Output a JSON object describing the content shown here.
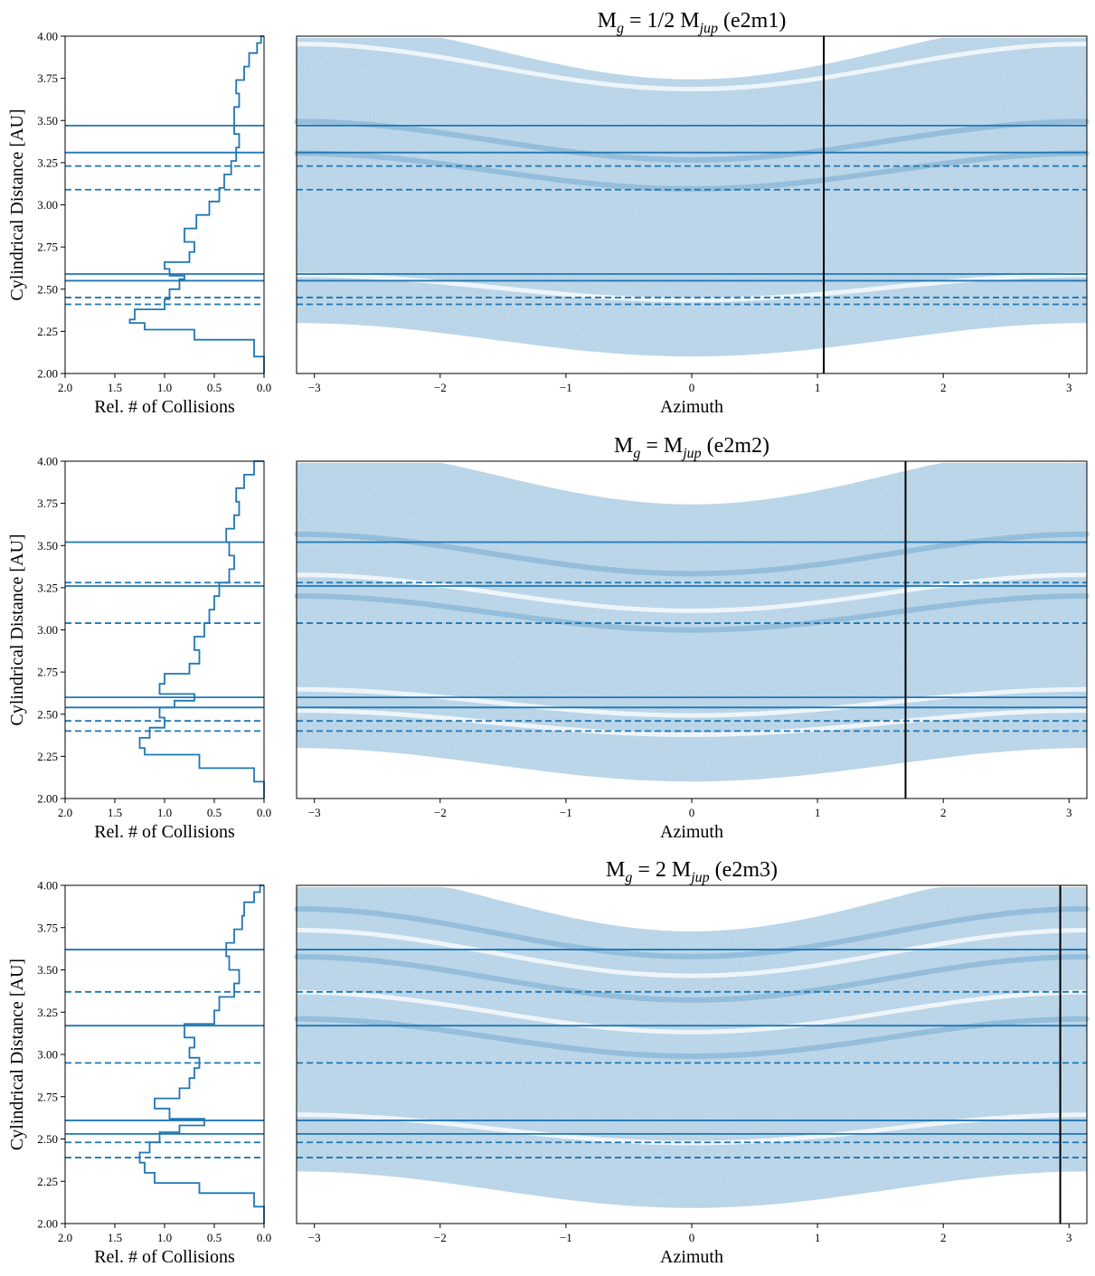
{
  "colors": {
    "series": "#1f77b4",
    "planet_line": "#000000",
    "frame": "#000000"
  },
  "chart_data": [
    {
      "id": "e2m1",
      "title": {
        "prefix": "M",
        "sub1": "g",
        "mid": " = 1/2 M",
        "sub2": "jup",
        "suffix": " (e2m1)"
      },
      "hist": {
        "type": "step",
        "xlabel": "Rel. # of Collisions",
        "ylabel": "Cylindrical Distance [AU]",
        "xlim": [
          2.0,
          0.0
        ],
        "ylim": [
          2.0,
          4.0
        ],
        "xticks": [
          "2.0",
          "1.5",
          "1.0",
          "0.5",
          "0.0"
        ],
        "yticks": [
          "2.00",
          "2.25",
          "2.50",
          "2.75",
          "3.00",
          "3.25",
          "3.50",
          "3.75",
          "4.00"
        ],
        "r": [
          2.0,
          2.1,
          2.2,
          2.26,
          2.3,
          2.32,
          2.38,
          2.44,
          2.5,
          2.56,
          2.58,
          2.62,
          2.66,
          2.72,
          2.78,
          2.86,
          2.94,
          3.02,
          3.1,
          3.18,
          3.26,
          3.34,
          3.42,
          3.5,
          3.58,
          3.66,
          3.74,
          3.82,
          3.9,
          3.96,
          4.0
        ],
        "counts": [
          0.0,
          0.1,
          0.7,
          1.2,
          1.35,
          1.3,
          1.0,
          0.95,
          0.85,
          0.8,
          0.95,
          1.0,
          0.75,
          0.7,
          0.8,
          0.68,
          0.55,
          0.45,
          0.4,
          0.33,
          0.28,
          0.25,
          0.3,
          0.3,
          0.25,
          0.28,
          0.2,
          0.15,
          0.07,
          0.03,
          0.0
        ]
      },
      "lines_solid": [
        2.55,
        2.59,
        3.31,
        3.47
      ],
      "lines_dashed": [
        2.41,
        2.45,
        3.09,
        3.23
      ],
      "scatter": {
        "type": "scatter",
        "xlabel": "Azimuth",
        "xlim": [
          -3.1416,
          3.1416
        ],
        "ylim": [
          2.0,
          4.0
        ],
        "xticks": [
          "−3",
          "−2",
          "−1",
          "0",
          "1",
          "2",
          "3"
        ],
        "planet_azimuth": 1.05,
        "amp": 0.11,
        "gaps": [
          2.51,
          3.82
        ],
        "dense": [
          3.2,
          3.38
        ]
      }
    },
    {
      "id": "e2m2",
      "title": {
        "prefix": "M",
        "sub1": "g",
        "mid": " = M",
        "sub2": "jup",
        "suffix": " (e2m2)"
      },
      "hist": {
        "type": "step",
        "xlabel": "Rel. # of Collisions",
        "ylabel": "Cylindrical Distance [AU]",
        "xlim": [
          2.0,
          0.0
        ],
        "ylim": [
          2.0,
          4.0
        ],
        "xticks": [
          "2.0",
          "1.5",
          "1.0",
          "0.5",
          "0.0"
        ],
        "yticks": [
          "2.00",
          "2.25",
          "2.50",
          "2.75",
          "3.00",
          "3.25",
          "3.50",
          "3.75",
          "4.00"
        ],
        "r": [
          2.0,
          2.1,
          2.18,
          2.26,
          2.3,
          2.36,
          2.42,
          2.48,
          2.54,
          2.58,
          2.62,
          2.68,
          2.74,
          2.8,
          2.88,
          2.96,
          3.04,
          3.12,
          3.2,
          3.28,
          3.36,
          3.44,
          3.52,
          3.6,
          3.68,
          3.76,
          3.84,
          3.92,
          4.0
        ],
        "counts": [
          0.0,
          0.1,
          0.65,
          1.2,
          1.25,
          1.15,
          1.0,
          1.05,
          0.9,
          0.7,
          1.05,
          1.0,
          0.75,
          0.65,
          0.7,
          0.6,
          0.55,
          0.5,
          0.45,
          0.35,
          0.3,
          0.35,
          0.38,
          0.3,
          0.25,
          0.28,
          0.2,
          0.1,
          0.0
        ]
      },
      "lines_solid": [
        2.54,
        2.6,
        3.26,
        3.52
      ],
      "lines_dashed": [
        2.4,
        2.46,
        3.04,
        3.28
      ],
      "scatter": {
        "type": "scatter",
        "xlabel": "Azimuth",
        "xlim": [
          -3.1416,
          3.1416
        ],
        "ylim": [
          2.0,
          4.0
        ],
        "xticks": [
          "−3",
          "−2",
          "−1",
          "0",
          "1",
          "2",
          "3"
        ],
        "planet_azimuth": 1.7,
        "amp": 0.11,
        "gaps": [
          2.45,
          2.57,
          3.22
        ],
        "dense": [
          3.1,
          3.45
        ]
      }
    },
    {
      "id": "e2m3",
      "title": {
        "prefix": "M",
        "sub1": "g",
        "mid": " = 2 M",
        "sub2": "jup",
        "suffix": " (e2m3)"
      },
      "hist": {
        "type": "step",
        "xlabel": "Rel. # of Collisions",
        "ylabel": "Cylindrical Distance [AU]",
        "xlim": [
          2.0,
          0.0
        ],
        "ylim": [
          2.0,
          4.0
        ],
        "xticks": [
          "2.0",
          "1.5",
          "1.0",
          "0.5",
          "0.0"
        ],
        "yticks": [
          "2.00",
          "2.25",
          "2.50",
          "2.75",
          "3.00",
          "3.25",
          "3.50",
          "3.75",
          "4.00"
        ],
        "r": [
          2.0,
          2.1,
          2.18,
          2.24,
          2.3,
          2.36,
          2.42,
          2.48,
          2.54,
          2.58,
          2.62,
          2.68,
          2.74,
          2.8,
          2.86,
          2.92,
          2.98,
          3.04,
          3.1,
          3.18,
          3.26,
          3.34,
          3.42,
          3.5,
          3.58,
          3.66,
          3.74,
          3.82,
          3.9,
          3.96,
          4.0
        ],
        "counts": [
          0.0,
          0.1,
          0.65,
          1.1,
          1.2,
          1.25,
          1.15,
          1.05,
          0.85,
          0.6,
          0.95,
          1.1,
          0.85,
          0.75,
          0.7,
          0.65,
          0.75,
          0.7,
          0.8,
          0.5,
          0.45,
          0.3,
          0.25,
          0.35,
          0.38,
          0.3,
          0.22,
          0.2,
          0.1,
          0.04,
          0.0
        ]
      },
      "lines_solid": [
        2.53,
        2.61,
        3.17,
        3.62
      ],
      "lines_dashed": [
        2.39,
        2.48,
        2.95,
        3.37
      ],
      "scatter": {
        "type": "scatter",
        "xlabel": "Azimuth",
        "xlim": [
          -3.1416,
          3.1416
        ],
        "ylim": [
          2.0,
          4.0
        ],
        "xticks": [
          "−3",
          "−2",
          "−1",
          "0",
          "1",
          "2",
          "3"
        ],
        "planet_azimuth": 2.93,
        "amp": 0.12,
        "gaps": [
          2.56,
          3.25,
          3.6
        ],
        "dense": [
          3.1,
          3.45,
          3.72
        ]
      }
    }
  ]
}
